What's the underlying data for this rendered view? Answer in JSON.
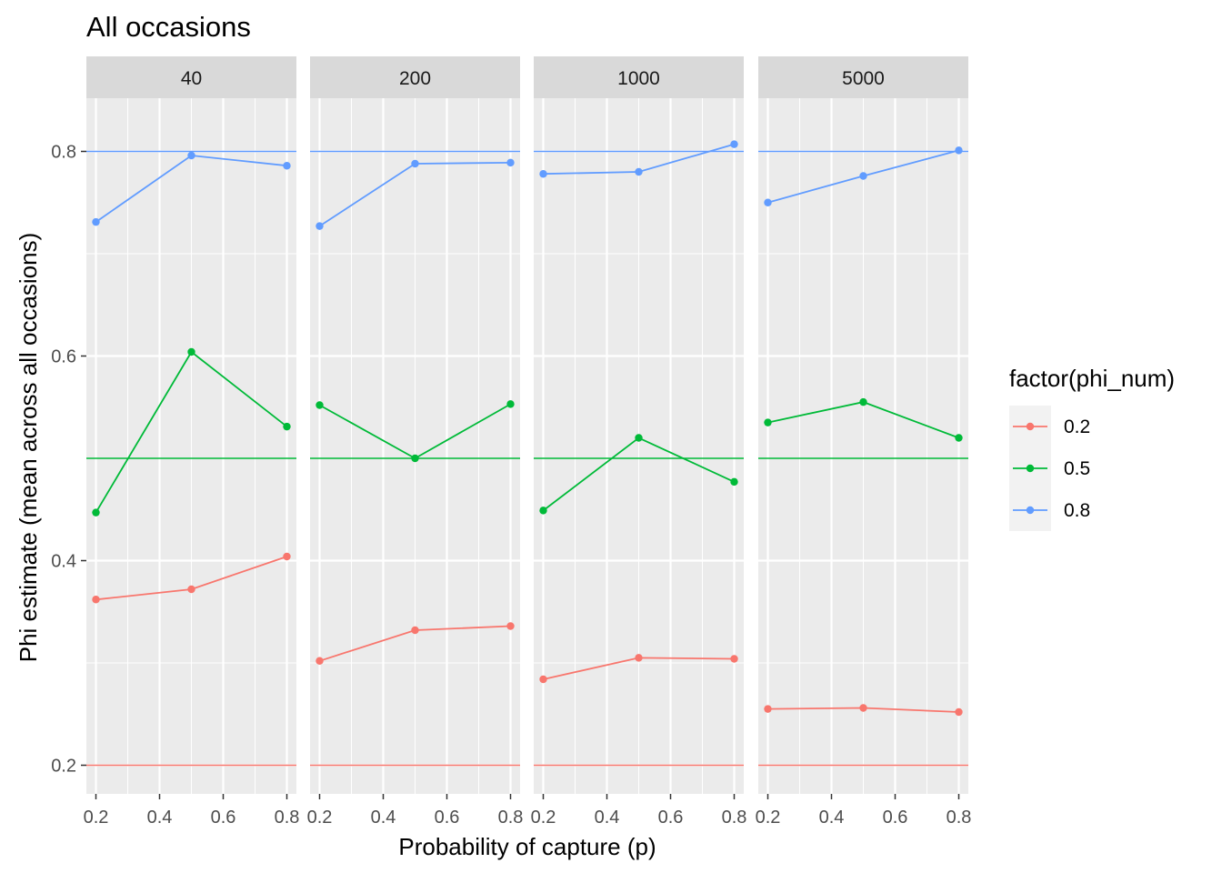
{
  "chart_data": {
    "type": "line",
    "title": "All occasions",
    "xlabel": "Probability of capture (p)",
    "ylabel": "Phi estimate (mean across all occasions)",
    "x_ticks": [
      "0.2",
      "0.4",
      "0.6",
      "0.8"
    ],
    "y_ticks": [
      "0.2",
      "0.4",
      "0.6",
      "0.8"
    ],
    "xlim": [
      0.17,
      0.83
    ],
    "ylim": [
      0.172,
      0.852
    ],
    "grid": true,
    "legend": {
      "title": "factor(phi_num)",
      "position": "right",
      "entries": [
        "0.2",
        "0.5",
        "0.8"
      ]
    },
    "colors": {
      "0.2": "#F8766D",
      "0.5": "#00BA38",
      "0.8": "#619CFF"
    },
    "reference_lines": [
      {
        "series": "0.2",
        "y": 0.2
      },
      {
        "series": "0.5",
        "y": 0.5
      },
      {
        "series": "0.8",
        "y": 0.8
      }
    ],
    "x": [
      0.2,
      0.5,
      0.8
    ],
    "panels": [
      {
        "label": "40",
        "series": [
          {
            "name": "0.2",
            "values": [
              0.362,
              0.372,
              0.404
            ]
          },
          {
            "name": "0.5",
            "values": [
              0.447,
              0.604,
              0.531
            ]
          },
          {
            "name": "0.8",
            "values": [
              0.731,
              0.796,
              0.786
            ]
          }
        ]
      },
      {
        "label": "200",
        "series": [
          {
            "name": "0.2",
            "values": [
              0.302,
              0.332,
              0.336
            ]
          },
          {
            "name": "0.5",
            "values": [
              0.552,
              0.5,
              0.553
            ]
          },
          {
            "name": "0.8",
            "values": [
              0.727,
              0.788,
              0.789
            ]
          }
        ]
      },
      {
        "label": "1000",
        "series": [
          {
            "name": "0.2",
            "values": [
              0.284,
              0.305,
              0.304
            ]
          },
          {
            "name": "0.5",
            "values": [
              0.449,
              0.52,
              0.477
            ]
          },
          {
            "name": "0.8",
            "values": [
              0.778,
              0.78,
              0.807
            ]
          }
        ]
      },
      {
        "label": "5000",
        "series": [
          {
            "name": "0.2",
            "values": [
              0.255,
              0.256,
              0.252
            ]
          },
          {
            "name": "0.5",
            "values": [
              0.535,
              0.555,
              0.52
            ]
          },
          {
            "name": "0.8",
            "values": [
              0.75,
              0.776,
              0.801
            ]
          }
        ]
      }
    ]
  }
}
